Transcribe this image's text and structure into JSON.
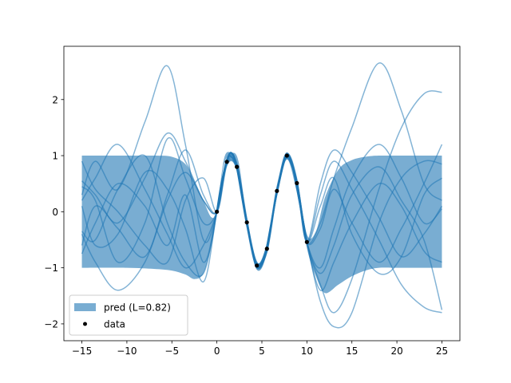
{
  "chart_data": {
    "type": "line",
    "title": "",
    "xlabel": "",
    "ylabel": "",
    "xlim": [
      -17,
      27
    ],
    "ylim": [
      -2.3,
      2.95
    ],
    "xticks": [
      -15,
      -10,
      -5,
      0,
      5,
      10,
      15,
      20,
      25
    ],
    "xtick_labels": [
      "−15",
      "−10",
      "−5",
      "0",
      "5",
      "10",
      "15",
      "20",
      "25"
    ],
    "yticks": [
      -2,
      -1,
      0,
      1,
      2
    ],
    "ytick_labels": [
      "−2",
      "−1",
      "0",
      "1",
      "2"
    ],
    "grid": false,
    "legend_position": "lower-left",
    "colors": {
      "band": "#1f77b4",
      "samples": "#1f77b4",
      "mean": "#1f77b4",
      "data": "#000000"
    },
    "band": {
      "name": "pred (L=0.82)",
      "x": [
        -15,
        -10,
        -7,
        -5,
        -3.5,
        -2.5,
        -1.5,
        -0.6,
        0,
        0.8,
        1.6,
        2.4,
        3.3,
        4.4,
        5.5,
        6.7,
        7.7,
        8.8,
        10,
        11,
        12,
        13.5,
        15,
        16.5,
        18,
        20,
        25
      ],
      "lower": [
        -1.0,
        -1.0,
        -1.02,
        -1.05,
        -1.12,
        -1.2,
        -1.1,
        -0.6,
        -0.05,
        0.85,
        0.96,
        0.7,
        -0.25,
        -1.0,
        -0.75,
        0.3,
        0.95,
        0.4,
        -0.65,
        -1.15,
        -1.45,
        -1.3,
        -1.15,
        -1.05,
        -1.0,
        -1.0,
        -1.0
      ],
      "upper": [
        1.0,
        1.0,
        1.0,
        0.98,
        0.85,
        0.55,
        0.2,
        -0.1,
        0.05,
        0.95,
        1.05,
        0.9,
        -0.1,
        -0.9,
        -0.6,
        0.45,
        1.05,
        0.6,
        -0.4,
        -0.35,
        0.25,
        0.75,
        0.92,
        0.98,
        1.0,
        1.0,
        1.0
      ]
    },
    "mean": {
      "x": [
        0,
        0.5,
        1.1,
        1.6,
        2.2,
        3.3,
        4.4,
        5.0,
        5.5,
        6.7,
        7.7,
        8.3,
        8.8,
        10
      ],
      "y": [
        0.0,
        0.5,
        0.9,
        1.05,
        0.8,
        -0.2,
        -0.95,
        -0.9,
        -0.67,
        0.37,
        1.0,
        0.85,
        0.51,
        -0.54
      ]
    },
    "data": {
      "name": "data",
      "x": [
        0,
        1.11,
        2.22,
        3.33,
        4.44,
        5.56,
        6.67,
        7.78,
        8.89,
        10.0
      ],
      "y": [
        0.0,
        0.89,
        0.8,
        -0.19,
        -0.96,
        -0.66,
        0.37,
        1.0,
        0.51,
        -0.54
      ]
    },
    "samples": [
      {
        "left": [
          0.55,
          0.3,
          -0.2,
          0.6,
          1.4,
          0.9,
          0.2,
          -0.1
        ],
        "right": [
          -0.6,
          -0.2,
          0.6,
          1.5,
          2.65,
          1.8,
          0.5,
          0.2
        ]
      },
      {
        "left": [
          0.3,
          0.9,
          0.4,
          1.6,
          2.6,
          1.2,
          -0.5,
          -0.3
        ],
        "right": [
          -0.7,
          -1.3,
          -1.8,
          -1.2,
          0.4,
          1.5,
          2.1,
          2.13
        ]
      },
      {
        "left": [
          -0.75,
          -0.2,
          0.5,
          0.1,
          -0.6,
          0.3,
          -0.9,
          -0.6
        ],
        "right": [
          -0.4,
          0.3,
          0.9,
          0.4,
          -0.5,
          -1.3,
          -1.7,
          -1.8
        ]
      },
      {
        "left": [
          0.45,
          0.2,
          -0.9,
          -0.2,
          1.3,
          0.6,
          -0.2,
          -0.2
        ],
        "right": [
          -1.0,
          -1.6,
          -2.05,
          -1.8,
          -0.2,
          0.6,
          0.9,
          0.85
        ]
      },
      {
        "left": [
          -0.35,
          -0.5,
          0.4,
          1.0,
          -0.2,
          -0.9,
          -1.1,
          -0.9
        ],
        "right": [
          -0.8,
          -0.3,
          0.4,
          -0.2,
          -0.9,
          -0.3,
          0.5,
          1.2
        ]
      },
      {
        "left": [
          0.9,
          0.4,
          0.0,
          -0.6,
          -0.9,
          0.2,
          0.6,
          -0.3
        ],
        "right": [
          -0.3,
          0.5,
          1.1,
          0.7,
          -0.1,
          -0.8,
          -0.4,
          0.1
        ]
      },
      {
        "left": [
          0.1,
          -0.6,
          -0.4,
          0.7,
          0.4,
          -0.3,
          -1.25,
          -0.8
        ],
        "right": [
          -0.9,
          -1.4,
          -0.9,
          -0.2,
          0.5,
          0.1,
          -0.7,
          -0.9
        ]
      },
      {
        "left": [
          -0.4,
          -0.9,
          -1.4,
          -0.9,
          0.2,
          0.7,
          0.2,
          -0.3
        ],
        "right": [
          -0.5,
          -1.0,
          -0.3,
          0.6,
          1.2,
          0.6,
          -0.2,
          0.05
        ]
      },
      {
        "left": [
          0.2,
          0.6,
          1.2,
          0.4,
          -0.4,
          -1.0,
          -0.6,
          -0.4
        ],
        "right": [
          -0.7,
          0.1,
          0.6,
          -0.4,
          -1.1,
          -0.8,
          0.3,
          0.6
        ]
      },
      {
        "left": [
          -0.6,
          0.1,
          -0.3,
          -0.8,
          0.3,
          1.1,
          0.3,
          -0.5
        ],
        "right": [
          -0.6,
          -1.1,
          -0.6,
          0.3,
          0.8,
          0.2,
          -0.5,
          -1.75
        ]
      }
    ]
  },
  "legend": {
    "band_label": "pred (L=0.82)",
    "data_label": "data"
  }
}
